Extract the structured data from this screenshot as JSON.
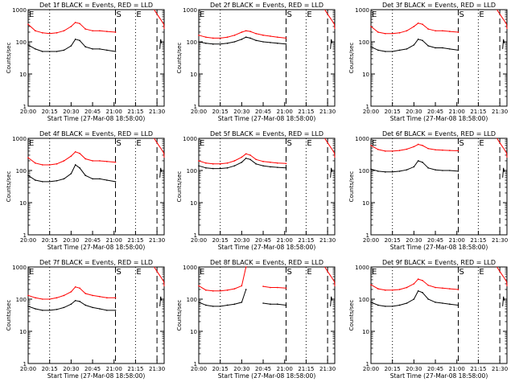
{
  "figure": {
    "x_ticks": [
      "20:00",
      "20:15",
      "20:30",
      "20:45",
      "21:00",
      "21:15",
      "21:30"
    ],
    "y_ticks": [
      "1",
      "10",
      "100",
      "1000"
    ],
    "xlabel": "Start Time (27-Mar-08 18:58:00)",
    "ylabel": "Counts/sec",
    "marker_labels": {
      "s": "S",
      "e": "E"
    },
    "colors": {
      "events": "#000000",
      "lld": "#ff0000"
    }
  },
  "chart_data": [
    {
      "type": "line",
      "title": "Det 1f BLACK = Events, RED = LLD",
      "xlabel": "Start Time (27-Mar-08 18:58:00)",
      "ylabel": "Counts/sec",
      "yscale": "log",
      "ylim": [
        1,
        1000
      ],
      "xlim": [
        "20:00",
        "21:35"
      ],
      "x": [
        "20:00",
        "20:05",
        "20:10",
        "20:15",
        "20:20",
        "20:25",
        "20:30",
        "20:33",
        "20:36",
        "20:40",
        "20:45",
        "20:50",
        "20:55",
        "21:01"
      ],
      "series": [
        {
          "name": "BLACK = Events",
          "color": "#000000",
          "values": [
            80,
            60,
            50,
            50,
            50,
            55,
            75,
            120,
            110,
            70,
            60,
            60,
            55,
            50
          ]
        },
        {
          "name": "RED = LLD",
          "color": "#ff0000",
          "values": [
            350,
            220,
            190,
            180,
            190,
            220,
            300,
            400,
            370,
            250,
            220,
            220,
            210,
            200
          ]
        }
      ]
    },
    {
      "type": "line",
      "title": "Det 2f BLACK = Events, RED = LLD",
      "xlabel": "Start Time (27-Mar-08 18:58:00)",
      "ylabel": "Counts/sec",
      "yscale": "log",
      "ylim": [
        1,
        1000
      ],
      "xlim": [
        "20:00",
        "21:35"
      ],
      "x": [
        "20:00",
        "20:05",
        "20:10",
        "20:15",
        "20:20",
        "20:25",
        "20:30",
        "20:33",
        "20:36",
        "20:40",
        "20:45",
        "20:50",
        "20:55",
        "21:01"
      ],
      "series": [
        {
          "name": "BLACK = Events",
          "color": "#000000",
          "values": [
            100,
            90,
            85,
            85,
            90,
            100,
            120,
            140,
            130,
            110,
            100,
            95,
            90,
            85
          ]
        },
        {
          "name": "RED = LLD",
          "color": "#ff0000",
          "values": [
            160,
            140,
            130,
            130,
            140,
            160,
            200,
            220,
            210,
            180,
            160,
            150,
            140,
            130
          ]
        }
      ]
    },
    {
      "type": "line",
      "title": "Det 3f BLACK = Events, RED = LLD",
      "xlabel": "Start Time (27-Mar-08 18:58:00)",
      "ylabel": "Counts/sec",
      "yscale": "log",
      "ylim": [
        1,
        1000
      ],
      "xlim": [
        "20:00",
        "21:35"
      ],
      "x": [
        "20:00",
        "20:05",
        "20:10",
        "20:15",
        "20:20",
        "20:25",
        "20:30",
        "20:33",
        "20:36",
        "20:40",
        "20:45",
        "20:50",
        "20:55",
        "21:01"
      ],
      "series": [
        {
          "name": "BLACK = Events",
          "color": "#000000",
          "values": [
            70,
            55,
            50,
            50,
            55,
            60,
            80,
            120,
            110,
            75,
            65,
            65,
            60,
            55
          ]
        },
        {
          "name": "RED = LLD",
          "color": "#ff0000",
          "values": [
            300,
            200,
            180,
            180,
            190,
            220,
            300,
            380,
            350,
            250,
            220,
            220,
            210,
            200
          ]
        }
      ]
    },
    {
      "type": "line",
      "title": "Det 4f BLACK = Events, RED = LLD",
      "xlabel": "Start Time (27-Mar-08 18:58:00)",
      "ylabel": "Counts/sec",
      "yscale": "log",
      "ylim": [
        1,
        1000
      ],
      "xlim": [
        "20:00",
        "21:35"
      ],
      "x": [
        "20:00",
        "20:05",
        "20:10",
        "20:15",
        "20:20",
        "20:25",
        "20:30",
        "20:33",
        "20:36",
        "20:40",
        "20:45",
        "20:50",
        "20:55",
        "21:01"
      ],
      "series": [
        {
          "name": "BLACK = Events",
          "color": "#000000",
          "values": [
            70,
            50,
            45,
            45,
            48,
            55,
            80,
            150,
            120,
            70,
            55,
            55,
            50,
            45
          ]
        },
        {
          "name": "RED = LLD",
          "color": "#ff0000",
          "values": [
            250,
            170,
            150,
            150,
            160,
            200,
            280,
            380,
            340,
            230,
            200,
            200,
            190,
            180
          ]
        }
      ]
    },
    {
      "type": "line",
      "title": "Det 5f BLACK = Events, RED = LLD",
      "xlabel": "Start Time (27-Mar-08 18:58:00)",
      "ylabel": "Counts/sec",
      "yscale": "log",
      "ylim": [
        1,
        1000
      ],
      "xlim": [
        "20:00",
        "21:35"
      ],
      "x": [
        "20:00",
        "20:05",
        "20:10",
        "20:15",
        "20:20",
        "20:25",
        "20:30",
        "20:33",
        "20:36",
        "20:40",
        "20:45",
        "20:50",
        "20:55",
        "21:01"
      ],
      "series": [
        {
          "name": "BLACK = Events",
          "color": "#000000",
          "values": [
            140,
            120,
            115,
            115,
            120,
            140,
            180,
            240,
            220,
            160,
            140,
            130,
            125,
            120
          ]
        },
        {
          "name": "RED = LLD",
          "color": "#ff0000",
          "values": [
            200,
            170,
            160,
            160,
            170,
            200,
            260,
            330,
            300,
            220,
            190,
            180,
            170,
            165
          ]
        }
      ]
    },
    {
      "type": "line",
      "title": "Det 6f BLACK = Events, RED = LLD",
      "xlabel": "Start Time (27-Mar-08 18:58:00)",
      "ylabel": "Counts/sec",
      "yscale": "log",
      "ylim": [
        1,
        1000
      ],
      "xlim": [
        "20:00",
        "21:35"
      ],
      "x": [
        "20:00",
        "20:05",
        "20:10",
        "20:15",
        "20:20",
        "20:25",
        "20:30",
        "20:33",
        "20:36",
        "20:40",
        "20:45",
        "20:50",
        "20:55",
        "21:01"
      ],
      "series": [
        {
          "name": "BLACK = Events",
          "color": "#000000",
          "values": [
            110,
            95,
            90,
            90,
            95,
            105,
            130,
            200,
            180,
            120,
            105,
            100,
            100,
            95
          ]
        },
        {
          "name": "RED = LLD",
          "color": "#ff0000",
          "values": [
            600,
            450,
            400,
            400,
            420,
            460,
            550,
            650,
            600,
            480,
            440,
            430,
            420,
            410
          ]
        }
      ]
    },
    {
      "type": "line",
      "title": "Det 7f BLACK = Events, RED = LLD",
      "xlabel": "Start Time (27-Mar-08 18:58:00)",
      "ylabel": "Counts/sec",
      "yscale": "log",
      "ylim": [
        1,
        1000
      ],
      "xlim": [
        "20:00",
        "21:35"
      ],
      "x": [
        "20:00",
        "20:05",
        "20:10",
        "20:15",
        "20:20",
        "20:25",
        "20:30",
        "20:33",
        "20:36",
        "20:40",
        "20:45",
        "20:50",
        "20:55",
        "21:01"
      ],
      "series": [
        {
          "name": "BLACK = Events",
          "color": "#000000",
          "values": [
            60,
            50,
            45,
            45,
            48,
            55,
            70,
            90,
            85,
            65,
            55,
            50,
            45,
            45
          ]
        },
        {
          "name": "RED = LLD",
          "color": "#ff0000",
          "values": [
            130,
            110,
            100,
            100,
            110,
            130,
            170,
            240,
            220,
            150,
            130,
            120,
            110,
            110
          ]
        }
      ]
    },
    {
      "type": "line",
      "title": "Det 8f BLACK = Events, RED = LLD",
      "xlabel": "Start Time (27-Mar-08 18:58:00)",
      "ylabel": "Counts/sec",
      "yscale": "log",
      "ylim": [
        1,
        1000
      ],
      "xlim": [
        "20:00",
        "21:35"
      ],
      "x": [
        "20:00",
        "20:05",
        "20:10",
        "20:15",
        "20:20",
        "20:25",
        "20:30",
        "20:33",
        "20:36",
        "20:40",
        "20:45",
        "20:50",
        "20:55",
        "21:01"
      ],
      "series": [
        {
          "name": "BLACK = Events",
          "color": "#000000",
          "values": [
            80,
            65,
            60,
            60,
            65,
            70,
            80,
            200,
            null,
            null,
            75,
            70,
            70,
            65
          ]
        },
        {
          "name": "RED = LLD",
          "color": "#ff0000",
          "values": [
            260,
            190,
            180,
            180,
            190,
            210,
            260,
            1000,
            null,
            null,
            250,
            230,
            230,
            220
          ]
        }
      ]
    },
    {
      "type": "line",
      "title": "Det 9f BLACK = Events, RED = LLD",
      "xlabel": "Start Time (27-Mar-08 18:58:00)",
      "ylabel": "Counts/sec",
      "yscale": "log",
      "ylim": [
        1,
        1000
      ],
      "xlim": [
        "20:00",
        "21:35"
      ],
      "x": [
        "20:00",
        "20:05",
        "20:10",
        "20:15",
        "20:20",
        "20:25",
        "20:30",
        "20:33",
        "20:36",
        "20:40",
        "20:45",
        "20:50",
        "20:55",
        "21:01"
      ],
      "series": [
        {
          "name": "BLACK = Events",
          "color": "#000000",
          "values": [
            80,
            65,
            60,
            60,
            65,
            75,
            100,
            180,
            160,
            100,
            80,
            75,
            70,
            65
          ]
        },
        {
          "name": "RED = LLD",
          "color": "#ff0000",
          "values": [
            280,
            210,
            190,
            190,
            200,
            230,
            300,
            420,
            380,
            270,
            230,
            220,
            210,
            200
          ]
        }
      ]
    }
  ]
}
